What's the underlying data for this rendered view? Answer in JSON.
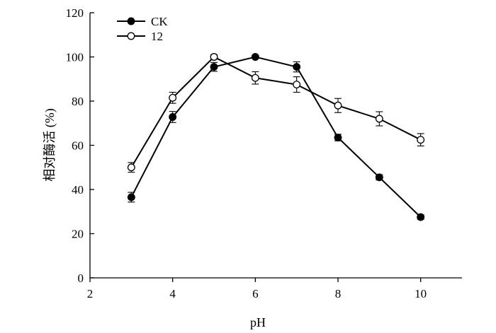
{
  "chart_data": {
    "type": "line",
    "title": "",
    "xlabel": "pH",
    "ylabel": "相对酶活 (%)",
    "xlim": [
      2,
      11
    ],
    "ylim": [
      0,
      120
    ],
    "x_ticks": [
      2,
      4,
      6,
      8,
      10
    ],
    "y_ticks": [
      0,
      20,
      40,
      60,
      80,
      100,
      120
    ],
    "x_tick_labels": [
      "2",
      "4",
      "6",
      "8",
      "10"
    ],
    "y_tick_labels": [
      "0",
      "20",
      "40",
      "60",
      "80",
      "100",
      "120"
    ],
    "grid": false,
    "legend_position": "top-left",
    "series": [
      {
        "name": "CK",
        "marker": "filled-circle",
        "color": "#000000",
        "x": [
          3,
          4,
          5,
          6,
          7,
          8,
          9,
          10
        ],
        "y": [
          36.5,
          72.8,
          95.5,
          100,
          95.5,
          63.5,
          45.5,
          27.5
        ],
        "err": [
          2.2,
          2.5,
          2.0,
          0.8,
          2.3,
          1.5,
          1.2,
          1.0
        ]
      },
      {
        "name": "12",
        "marker": "open-circle",
        "color": "#000000",
        "x": [
          3,
          4,
          5,
          6,
          7,
          8,
          9,
          10
        ],
        "y": [
          50,
          81.5,
          100,
          90.5,
          87.5,
          78,
          72,
          62.5
        ],
        "err": [
          2.2,
          2.5,
          1.0,
          2.8,
          3.5,
          3.2,
          3.2,
          2.8
        ]
      }
    ]
  }
}
